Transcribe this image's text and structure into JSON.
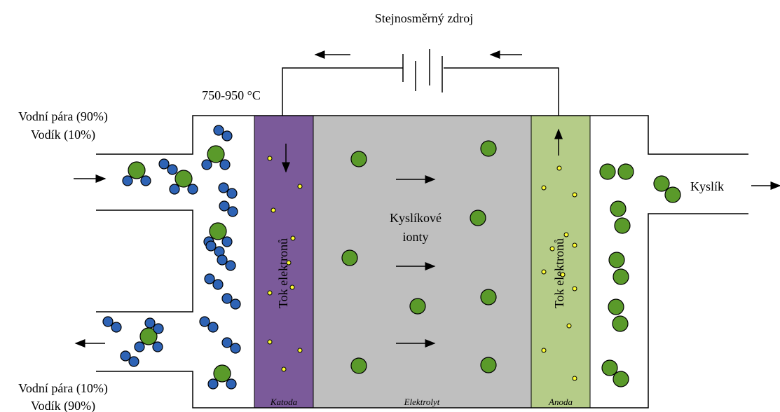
{
  "title": "Stejnosměrný zdroj",
  "temperature": "750-950 °C",
  "inlet": [
    "Vodní pára (90%)",
    "Vodík (10%)"
  ],
  "outlet": [
    "Vodní pára (10%)",
    "Vodík (90%)"
  ],
  "product": "Kyslík",
  "center": [
    "Kyslíkové",
    "ionty"
  ],
  "electron_flow": [
    "Tok elektronů",
    "Tok elektronů"
  ],
  "layers": [
    "Katoda",
    "Elektrolyt",
    "Anoda"
  ]
}
